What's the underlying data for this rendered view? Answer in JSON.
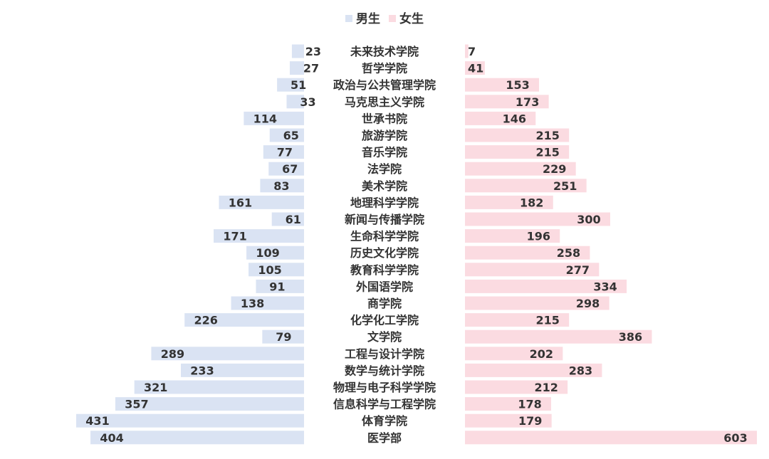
{
  "chart_data": {
    "type": "bar",
    "orientation": "horizontal-butterfly",
    "title": "",
    "xlabel": "",
    "ylabel": "",
    "legend_position": "top-center",
    "grid": false,
    "categories": [
      "未来技术学院",
      "哲学学院",
      "政治与公共管理学院",
      "马克思主义学院",
      "世承书院",
      "旅游学院",
      "音乐学院",
      "法学院",
      "美术学院",
      "地理科学学院",
      "新闻与传播学院",
      "生命科学学院",
      "历史文化学院",
      "教育科学学院",
      "外国语学院",
      "商学院",
      "化学化工学院",
      "文学院",
      "工程与设计学院",
      "数学与统计学院",
      "物理与电子科学学院",
      "信息科学与工程学院",
      "体育学院",
      "医学部"
    ],
    "series": [
      {
        "name": "男生",
        "color": "#dae3f3",
        "side": "left",
        "values": [
          23,
          27,
          51,
          33,
          114,
          65,
          77,
          67,
          83,
          161,
          61,
          171,
          109,
          105,
          91,
          138,
          226,
          79,
          289,
          233,
          321,
          357,
          431,
          404
        ]
      },
      {
        "name": "女生",
        "color": "#fbdbe1",
        "side": "right",
        "values": [
          7,
          41,
          153,
          173,
          146,
          215,
          215,
          229,
          251,
          182,
          300,
          196,
          258,
          277,
          334,
          298,
          215,
          386,
          202,
          283,
          212,
          178,
          179,
          603
        ]
      }
    ]
  }
}
